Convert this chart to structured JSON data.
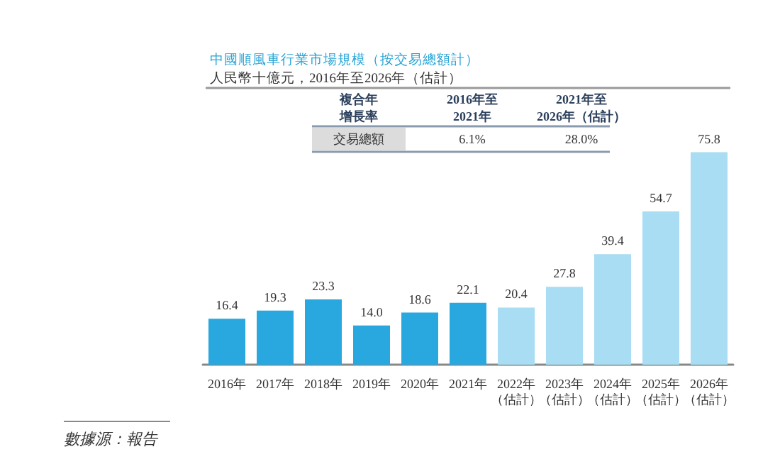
{
  "chart_data": {
    "type": "bar",
    "title": "中國順風車行業市場規模（按交易總額計）",
    "subtitle": "人民幣十億元，2016年至2026年（估計）",
    "categories": [
      "2016年",
      "2017年",
      "2018年",
      "2019年",
      "2020年",
      "2021年",
      "2022年（估計）",
      "2023年（估計）",
      "2024年（估計）",
      "2025年（估計）",
      "2026年（估計）"
    ],
    "values": [
      16.4,
      19.3,
      23.3,
      14.0,
      18.6,
      22.1,
      20.4,
      27.8,
      39.4,
      54.7,
      75.8
    ],
    "colors": [
      "#29a8df",
      "#29a8df",
      "#29a8df",
      "#29a8df",
      "#29a8df",
      "#29a8df",
      "#a8ddf3",
      "#a8ddf3",
      "#a8ddf3",
      "#a8ddf3",
      "#a8ddf3"
    ],
    "value_labels": [
      "16.4",
      "19.3",
      "23.3",
      "14.0",
      "18.6",
      "22.1",
      "20.4",
      "27.8",
      "39.4",
      "54.7",
      "75.8"
    ],
    "annotations": [
      "複合年增長率",
      "2016年至2021年",
      "2021年至2026年（估計）",
      "交易總額",
      "6.1%",
      "28.0%",
      "數據源：報告"
    ]
  }
}
